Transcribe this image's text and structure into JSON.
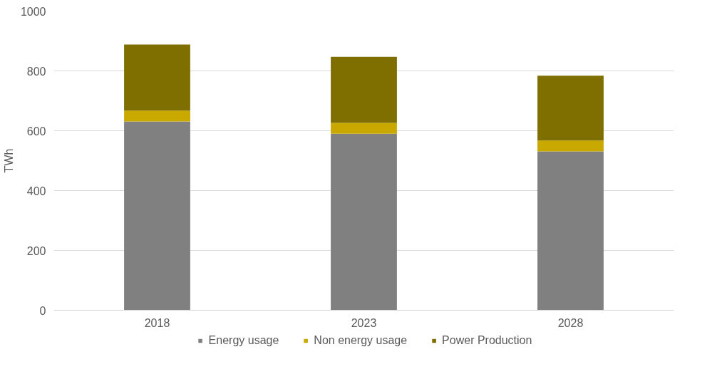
{
  "chart_data": {
    "type": "bar",
    "stacked": true,
    "ylabel": "TWh",
    "categories": [
      "2018",
      "2023",
      "2028"
    ],
    "series": [
      {
        "name": "Energy usage",
        "color": "#808080",
        "values": [
          631,
          590,
          531
        ]
      },
      {
        "name": "Non energy usage",
        "color": "#c9a800",
        "values": [
          36,
          36,
          36
        ]
      },
      {
        "name": "Power Production",
        "color": "#7f6f00",
        "values": [
          221,
          221,
          217
        ]
      }
    ],
    "ylim": [
      0,
      1000
    ],
    "yticks": [
      0,
      200,
      400,
      600,
      800,
      1000
    ],
    "grid": "y",
    "legend": "bottom"
  }
}
